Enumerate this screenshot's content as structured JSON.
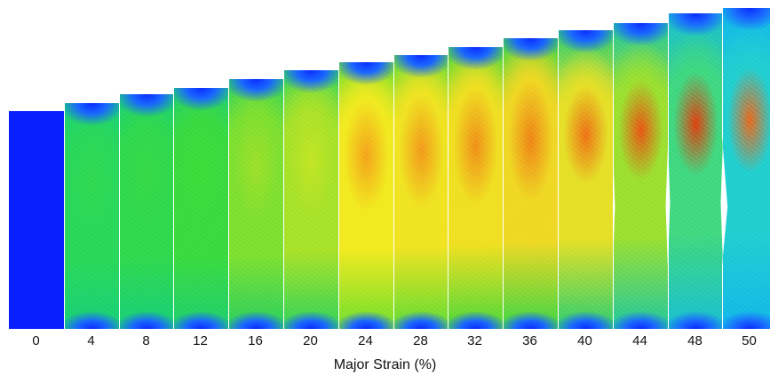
{
  "figure": {
    "axis_label": "Major Strain (%)",
    "samples": [
      {
        "strain": "0",
        "colors": {
          "edge": "#0a1fff",
          "mid": "#0a1fff",
          "core": "#0a1fff"
        }
      },
      {
        "strain": "4",
        "colors": {
          "edge": "#18d07a",
          "mid": "#2ad85a",
          "core": "#30d850"
        }
      },
      {
        "strain": "8",
        "colors": {
          "edge": "#18d07a",
          "mid": "#30d84e",
          "core": "#36da46"
        }
      },
      {
        "strain": "12",
        "colors": {
          "edge": "#20d070",
          "mid": "#3ada40",
          "core": "#3edc3a"
        }
      },
      {
        "strain": "16",
        "colors": {
          "edge": "#2ad060",
          "mid": "#7fe030",
          "core": "#9ee02a"
        }
      },
      {
        "strain": "20",
        "colors": {
          "edge": "#30d35a",
          "mid": "#a8e22a",
          "core": "#c2e624"
        }
      },
      {
        "strain": "24",
        "colors": {
          "edge": "#6fe02e",
          "mid": "#f2ea20",
          "core": "#f4a41c"
        }
      },
      {
        "strain": "28",
        "colors": {
          "edge": "#5fdc34",
          "mid": "#f0e422",
          "core": "#f29a1c"
        }
      },
      {
        "strain": "32",
        "colors": {
          "edge": "#4cd83a",
          "mid": "#f0e022",
          "core": "#f0901a"
        }
      },
      {
        "strain": "36",
        "colors": {
          "edge": "#3cd645",
          "mid": "#efd824",
          "core": "#ee8418"
        }
      },
      {
        "strain": "40",
        "colors": {
          "edge": "#2acf70",
          "mid": "#e6e028",
          "core": "#ec7216"
        }
      },
      {
        "strain": "44",
        "colors": {
          "edge": "#20c8a0",
          "mid": "#9ce030",
          "core": "#e85614"
        }
      },
      {
        "strain": "48",
        "colors": {
          "edge": "#18bfd2",
          "mid": "#40d880",
          "core": "#e04010"
        }
      },
      {
        "strain": "50",
        "colors": {
          "edge": "#12b8ea",
          "mid": "#22cfd0",
          "core": "#e86a20"
        }
      }
    ]
  }
}
